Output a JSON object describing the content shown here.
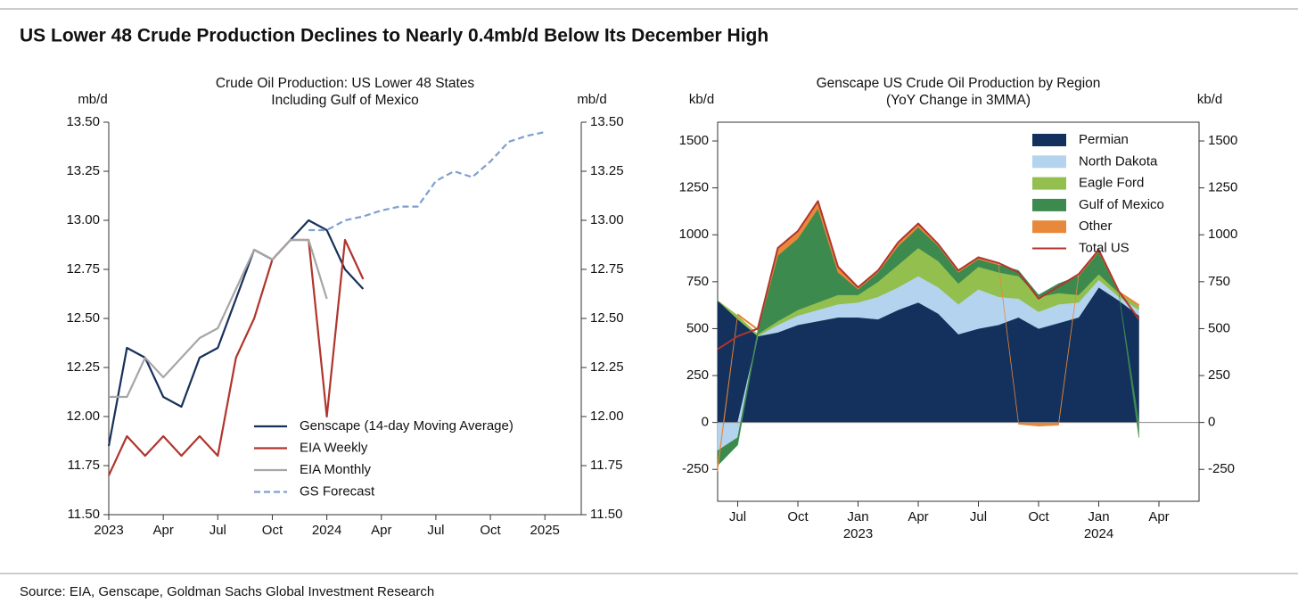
{
  "header": {
    "title": "US Lower 48 Crude Production Declines to Nearly 0.4mb/d Below Its December High"
  },
  "source": "Source: EIA, Genscape, Goldman Sachs Global Investment Research",
  "chart_data": [
    {
      "type": "line",
      "title": [
        "Crude Oil Production: US Lower 48 States",
        "Including Gulf of Mexico"
      ],
      "ylabel": "mb/d",
      "y2label": "mb/d",
      "xlim": [
        "2023-01",
        "2025-03"
      ],
      "xticks": [
        {
          "value": "2023-01",
          "label": "2023"
        },
        {
          "value": "2023-04",
          "label": "Apr"
        },
        {
          "value": "2023-07",
          "label": "Jul"
        },
        {
          "value": "2023-10",
          "label": "Oct"
        },
        {
          "value": "2024-01",
          "label": "2024"
        },
        {
          "value": "2024-04",
          "label": "Apr"
        },
        {
          "value": "2024-07",
          "label": "Jul"
        },
        {
          "value": "2024-10",
          "label": "Oct"
        },
        {
          "value": "2025-01",
          "label": "2025"
        }
      ],
      "ylim": [
        11.5,
        13.5
      ],
      "yticks": [
        {
          "value": 11.5,
          "label": "11.50"
        },
        {
          "value": 11.75,
          "label": "11.75"
        },
        {
          "value": 12,
          "label": "12.00"
        },
        {
          "value": 12.25,
          "label": "12.25"
        },
        {
          "value": 12.5,
          "label": "12.50"
        },
        {
          "value": 12.75,
          "label": "12.75"
        },
        {
          "value": 13,
          "label": "13.00"
        },
        {
          "value": 13.25,
          "label": "13.25"
        },
        {
          "value": 13.5,
          "label": "13.50"
        }
      ],
      "y2lim": [
        11.5,
        13.5
      ],
      "y2ticks": [
        {
          "value": 11.5,
          "label": "11.50"
        },
        {
          "value": 11.75,
          "label": "11.75"
        },
        {
          "value": 12,
          "label": "12.00"
        },
        {
          "value": 12.25,
          "label": "12.25"
        },
        {
          "value": 12.5,
          "label": "12.50"
        },
        {
          "value": 12.75,
          "label": "12.75"
        },
        {
          "value": 13,
          "label": "13.00"
        },
        {
          "value": 13.25,
          "label": "13.25"
        },
        {
          "value": 13.5,
          "label": "13.50"
        }
      ],
      "legend": "lower right",
      "series": [
        {
          "name": "Genscape (14-day Moving Average)",
          "color": "#17305a",
          "dash": false,
          "x": [
            "2023-01",
            "2023-02",
            "2023-03",
            "2023-04",
            "2023-05",
            "2023-06",
            "2023-07",
            "2023-08",
            "2023-09",
            "2023-10",
            "2023-11",
            "2023-12",
            "2024-01",
            "2024-02",
            "2024-03"
          ],
          "values": [
            11.85,
            12.35,
            12.3,
            12.1,
            12.05,
            12.3,
            12.35,
            12.6,
            12.85,
            12.8,
            12.9,
            13.0,
            12.95,
            12.75,
            12.65
          ]
        },
        {
          "name": "EIA Weekly",
          "color": "#b0352d",
          "dash": false,
          "x": [
            "2023-01",
            "2023-02",
            "2023-03",
            "2023-04",
            "2023-05",
            "2023-06",
            "2023-07",
            "2023-08",
            "2023-09",
            "2023-10",
            "2023-11",
            "2023-12",
            "2024-01",
            "2024-02",
            "2024-03"
          ],
          "values": [
            11.7,
            11.9,
            11.8,
            11.9,
            11.8,
            11.9,
            11.8,
            12.3,
            12.5,
            12.8,
            12.9,
            12.9,
            12.0,
            12.9,
            12.7
          ]
        },
        {
          "name": "EIA Monthly",
          "color": "#a6a6a6",
          "dash": false,
          "x": [
            "2023-01",
            "2023-02",
            "2023-03",
            "2023-04",
            "2023-05",
            "2023-06",
            "2023-07",
            "2023-08",
            "2023-09",
            "2023-10",
            "2023-11",
            "2023-12",
            "2024-01"
          ],
          "values": [
            12.1,
            12.1,
            12.3,
            12.2,
            12.3,
            12.4,
            12.45,
            12.65,
            12.85,
            12.8,
            12.9,
            12.9,
            12.6
          ]
        },
        {
          "name": "GS Forecast",
          "color": "#7f9fcc",
          "dash": true,
          "x": [
            "2023-12",
            "2024-01",
            "2024-02",
            "2024-03",
            "2024-04",
            "2024-05",
            "2024-06",
            "2024-07",
            "2024-08",
            "2024-09",
            "2024-10",
            "2024-11",
            "2024-12",
            "2025-01"
          ],
          "values": [
            12.95,
            12.95,
            13.0,
            13.02,
            13.05,
            13.07,
            13.07,
            13.2,
            13.25,
            13.22,
            13.3,
            13.4,
            13.43,
            13.45
          ]
        }
      ]
    },
    {
      "type": "stacked-area",
      "title": [
        "Genscape US Crude Oil Production by Region",
        "(YoY Change in 3MMA)"
      ],
      "ylabel": "kb/d",
      "y2label": "kb/d",
      "xlim": [
        "2022-06",
        "2024-06"
      ],
      "xticks": [
        {
          "value": "2022-07",
          "label": "Jul"
        },
        {
          "value": "2022-10",
          "label": "Oct"
        },
        {
          "value": "2023-01",
          "label": "Jan"
        },
        {
          "value": "2023-04",
          "label": "Apr"
        },
        {
          "value": "2023-07",
          "label": "Jul"
        },
        {
          "value": "2023-10",
          "label": "Oct"
        },
        {
          "value": "2024-01",
          "label": "Jan"
        },
        {
          "value": "2024-04",
          "label": "Apr"
        }
      ],
      "xyears": [
        {
          "value": "2023-01",
          "label": "2023"
        },
        {
          "value": "2024-01",
          "label": "2024"
        }
      ],
      "ylim": [
        -420,
        1600
      ],
      "yticks": [
        -250,
        0,
        250,
        500,
        750,
        1000,
        1250,
        1500
      ],
      "y2lim": [
        -420,
        1600
      ],
      "y2ticks": [
        -250,
        0,
        250,
        500,
        750,
        1000,
        1250,
        1500
      ],
      "legend": "upper right",
      "x": [
        "2022-06",
        "2022-07",
        "2022-08",
        "2022-09",
        "2022-10",
        "2022-11",
        "2022-12",
        "2023-01",
        "2023-02",
        "2023-03",
        "2023-04",
        "2023-05",
        "2023-06",
        "2023-07",
        "2023-08",
        "2023-09",
        "2023-10",
        "2023-11",
        "2023-12",
        "2024-01",
        "2024-02",
        "2024-03"
      ],
      "series": [
        {
          "name": "Permian",
          "color": "#13315c",
          "values": [
            650,
            550,
            460,
            480,
            520,
            540,
            560,
            560,
            550,
            600,
            640,
            580,
            470,
            500,
            520,
            560,
            500,
            530,
            560,
            720,
            650,
            570
          ]
        },
        {
          "name": "North Dakota",
          "color": "#b4d3ee",
          "values": [
            -150,
            -80,
            0,
            40,
            50,
            60,
            70,
            80,
            120,
            120,
            140,
            140,
            160,
            210,
            150,
            100,
            90,
            100,
            80,
            40,
            20,
            30
          ]
        },
        {
          "name": "Eagle Ford",
          "color": "#93bf4e",
          "values": [
            0,
            20,
            10,
            20,
            30,
            40,
            50,
            40,
            80,
            120,
            150,
            140,
            110,
            120,
            130,
            120,
            80,
            60,
            40,
            30,
            20,
            20
          ]
        },
        {
          "name": "Gulf of Mexico",
          "color": "#3d8a4f",
          "values": [
            -80,
            -40,
            20,
            350,
            380,
            500,
            120,
            30,
            50,
            100,
            110,
            80,
            60,
            40,
            40,
            30,
            10,
            50,
            100,
            120,
            0,
            -80
          ]
        },
        {
          "name": "Other",
          "color": "#e8883a",
          "values": [
            -30,
            10,
            10,
            40,
            40,
            40,
            30,
            10,
            10,
            20,
            20,
            10,
            10,
            10,
            10,
            -10,
            -20,
            -15,
            10,
            10,
            10,
            10
          ]
        }
      ],
      "total": {
        "name": "Total US",
        "color": "#b0352d",
        "values": [
          390,
          460,
          500,
          930,
          1020,
          1180,
          830,
          720,
          810,
          960,
          1060,
          950,
          810,
          880,
          850,
          800,
          660,
          725,
          790,
          920,
          700,
          550
        ]
      }
    }
  ]
}
